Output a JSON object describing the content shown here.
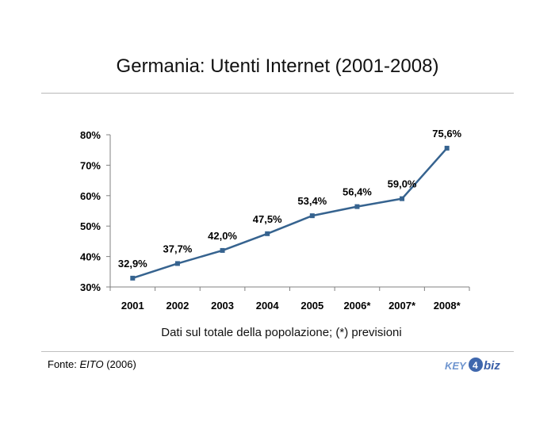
{
  "header": {
    "title": "Germania: Utenti Internet (2001-2008)"
  },
  "chart_data": {
    "type": "line",
    "title": "Germania: Utenti Internet (2001-2008)",
    "categories": [
      "2001",
      "2002",
      "2003",
      "2004",
      "2005",
      "2006*",
      "2007*",
      "2008*"
    ],
    "series": [
      {
        "values": [
          32.9,
          37.7,
          42.0,
          47.5,
          53.4,
          56.4,
          59.0,
          75.6
        ],
        "labels": [
          "32,9%",
          "37,7%",
          "42,0%",
          "47,5%",
          "53,4%",
          "56,4%",
          "59,0%",
          "75,6%"
        ],
        "color": "#36638f"
      }
    ],
    "ylim": [
      30,
      80
    ],
    "yticks": [
      30,
      40,
      50,
      60,
      70,
      80
    ],
    "ytick_labels": [
      "30%",
      "40%",
      "50%",
      "60%",
      "70%",
      "80%"
    ],
    "xlabel": "",
    "ylabel": "",
    "grid": false,
    "legend": "none"
  },
  "caption": "Dati sul totale della popolazione; (*) previsioni",
  "source": {
    "prefix": "Fonte: ",
    "name": "EITO",
    "suffix": " (2006)"
  },
  "logo": {
    "text": "KEY4biz",
    "colors": {
      "key": "#5a86c8",
      "biz": "#3a5fa8"
    }
  }
}
